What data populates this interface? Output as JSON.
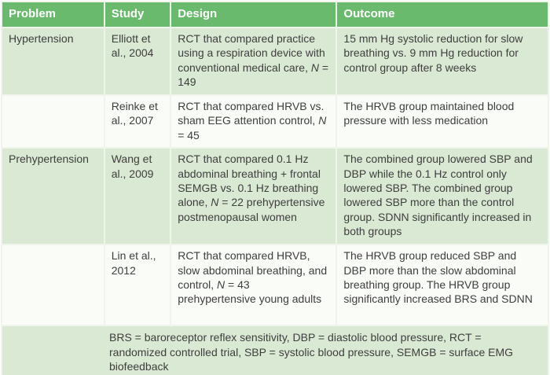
{
  "table": {
    "columns": {
      "problem": "Problem",
      "study": "Study",
      "design": "Design",
      "outcome": "Outcome"
    },
    "rows": [
      {
        "problem": "Hypertension",
        "study": "Elliott et al., 2004",
        "design": "RCT that compared practice using a respiration device with conventional medical care, N = 149",
        "outcome": "15 mm Hg systolic reduction for slow breathing vs. 9 mm Hg reduction for control group after 8 weeks"
      },
      {
        "problem": "",
        "study": "Reinke et al., 2007",
        "design": "RCT that compared HRVB vs. sham EEG attention control, N = 45",
        "outcome": "The HRVB group maintained blood pressure with less medication"
      },
      {
        "problem": "Prehypertension",
        "study": "Wang et al., 2009",
        "design": "RCT that compared 0.1 Hz abdominal breathing + frontal SEMGB vs. 0.1 Hz breathing alone, N = 22 prehypertensive postmenopausal women",
        "outcome": "The combined group lowered SBP and DBP while the 0.1 Hz control only lowered SBP. The combined group lowered SBP more than the control group. SDNN significantly increased in both groups"
      },
      {
        "problem": "",
        "study": "Lin et al., 2012",
        "design": "RCT that compared HRVB, slow abdominal breathing, and control, N = 43 prehypertensive young adults",
        "outcome": "The HRVB group reduced SBP and DBP more than the slow abdominal breathing group. The HRVB group significantly increased BRS and SDNN"
      }
    ],
    "footnote": "BRS = baroreceptor reflex sensitivity, DBP = diastolic blood pressure, RCT = randomized controlled trial, SBP =  systolic blood pressure, SEMGB = surface EMG biofeedback"
  },
  "colors": {
    "header_bg": "#6aba6d",
    "header_text": "#ffffff",
    "row_green": "#dae9d4",
    "row_white": "#fafcf8",
    "footer_bg": "#dae9d4",
    "grid": "#eff5eb",
    "text": "#3e3e3e"
  }
}
